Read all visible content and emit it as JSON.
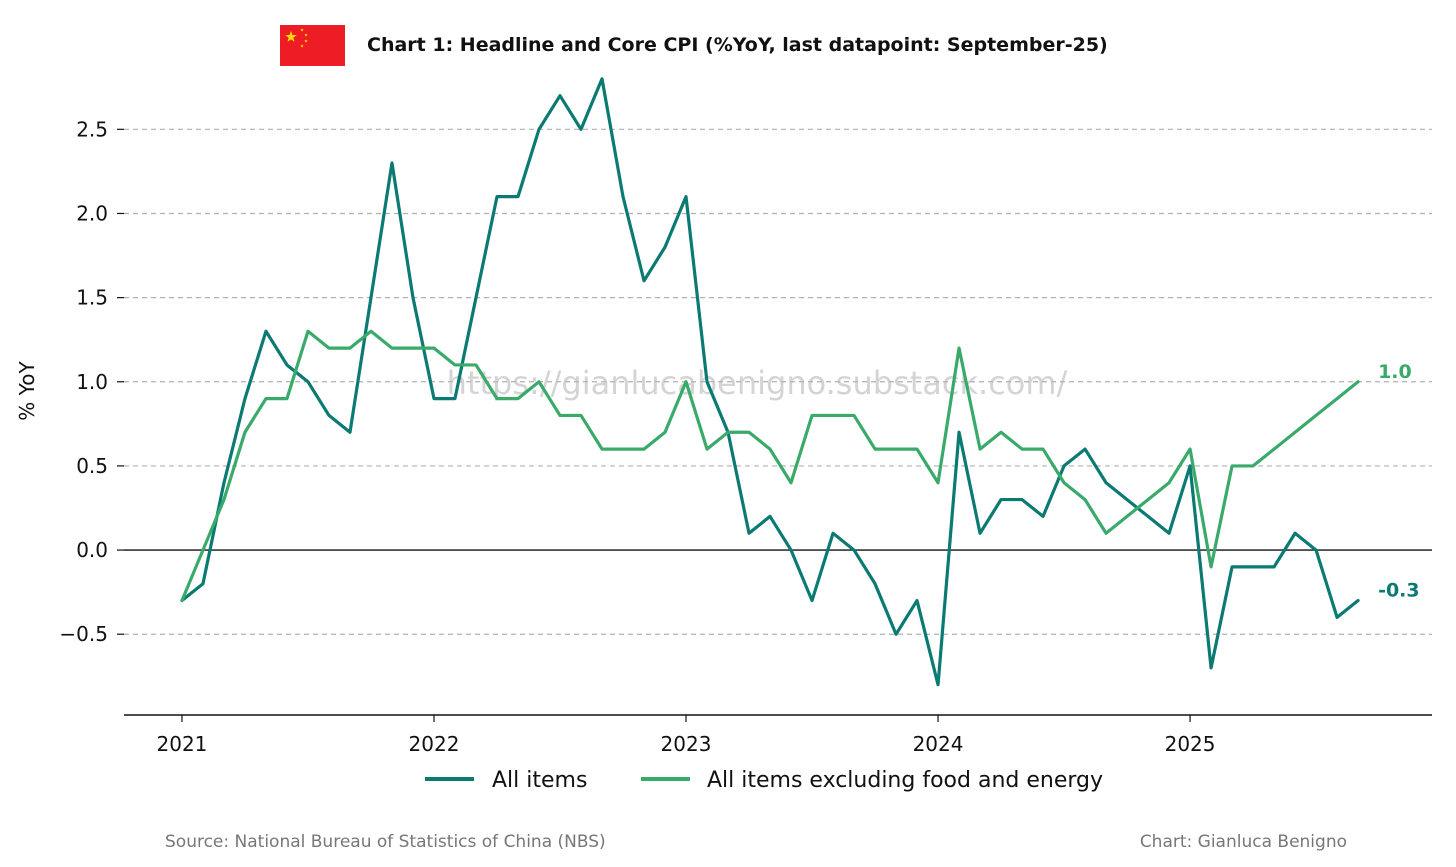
{
  "colors": {
    "all_items": "#0a7a73",
    "core": "#3aaa6a",
    "flag_red": "#ee1c25",
    "flag_star": "#ffde00"
  },
  "flag_icon": "china-flag-icon",
  "chart_data": {
    "type": "line",
    "title": "Chart 1: Headline and Core CPI (%YoY, last datapoint: September-25)",
    "xlabel": "",
    "ylabel": "% YoY",
    "ylim": [
      -0.98,
      2.9
    ],
    "yticks": [
      2.5,
      2.0,
      1.5,
      1.0,
      0.5,
      0.0,
      -0.5
    ],
    "ytick_labels": [
      "2.5",
      "2.0",
      "1.5",
      "1.0",
      "0.5",
      "0.0",
      "−0.5"
    ],
    "xlim": [
      2020.77,
      2025.96
    ],
    "xticks": [
      2021,
      2022,
      2023,
      2024,
      2025
    ],
    "xtick_labels": [
      "2021",
      "2022",
      "2023",
      "2024",
      "2025"
    ],
    "grid": "horizontal dashed",
    "legend_position": "bottom-center",
    "start": "2021-01",
    "series": [
      {
        "name": "All items",
        "color_key": "all_items",
        "end_label": "-0.3",
        "values": [
          -0.3,
          -0.2,
          0.4,
          0.9,
          1.3,
          1.1,
          1.0,
          0.8,
          0.7,
          1.5,
          2.3,
          1.5,
          0.9,
          0.9,
          1.5,
          2.1,
          2.1,
          2.5,
          2.7,
          2.5,
          2.8,
          2.1,
          1.6,
          1.8,
          2.1,
          1.0,
          0.7,
          0.1,
          0.2,
          0.0,
          -0.3,
          0.1,
          0.0,
          -0.2,
          -0.5,
          -0.3,
          -0.8,
          0.7,
          0.1,
          0.3,
          0.3,
          0.2,
          0.5,
          0.6,
          0.4,
          0.3,
          0.2,
          0.1,
          0.5,
          -0.7,
          -0.1,
          -0.1,
          -0.1,
          0.1,
          0.0,
          -0.4,
          -0.3
        ]
      },
      {
        "name": "All items excluding food and energy",
        "color_key": "core",
        "end_label": "1.0",
        "values": [
          -0.3,
          0.0,
          0.3,
          0.7,
          0.9,
          0.9,
          1.3,
          1.2,
          1.2,
          1.3,
          1.2,
          1.2,
          1.2,
          1.1,
          1.1,
          0.9,
          0.9,
          1.0,
          0.8,
          0.8,
          0.6,
          0.6,
          0.6,
          0.7,
          1.0,
          0.6,
          0.7,
          0.7,
          0.6,
          0.4,
          0.8,
          0.8,
          0.8,
          0.6,
          0.6,
          0.6,
          0.4,
          1.2,
          0.6,
          0.7,
          0.6,
          0.6,
          0.4,
          0.3,
          0.1,
          0.2,
          0.3,
          0.4,
          0.6,
          -0.1,
          0.5,
          0.5,
          0.6,
          0.7,
          0.8,
          0.9,
          1.0
        ]
      }
    ]
  },
  "watermark": "https://gianlucabenigno.substack.com/",
  "footer": {
    "source": "Source: National Bureau of Statistics of China (NBS)",
    "credit": "Chart: Gianluca Benigno"
  }
}
